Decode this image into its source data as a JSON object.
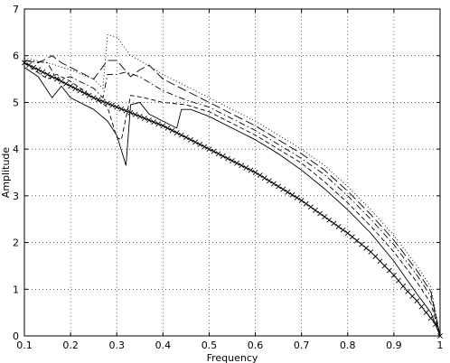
{
  "chart_data": {
    "type": "line",
    "title": "",
    "xlabel": "Frequency",
    "ylabel": "Amplitude",
    "xlim": [
      0.1,
      1
    ],
    "ylim": [
      0,
      7
    ],
    "xticks": [
      "0.1",
      "0.2",
      "0.3",
      "0.4",
      "0.5",
      "0.6",
      "0.7",
      "0.8",
      "0.9",
      "1"
    ],
    "yticks": [
      "0",
      "1",
      "2",
      "3",
      "4",
      "5",
      "6",
      "7"
    ],
    "grid": true,
    "series": [
      {
        "style": "solid",
        "marker": "none",
        "x": [
          0.1,
          0.13,
          0.16,
          0.18,
          0.2,
          0.25,
          0.28,
          0.3,
          0.32,
          0.33,
          0.35,
          0.37,
          0.4,
          0.43,
          0.44,
          0.46,
          0.5,
          0.55,
          0.6,
          0.65,
          0.7,
          0.75,
          0.8,
          0.85,
          0.9,
          0.95,
          0.98,
          1.0
        ],
        "y": [
          5.75,
          5.55,
          5.1,
          5.35,
          5.1,
          4.85,
          4.6,
          4.3,
          3.65,
          4.95,
          5.0,
          4.75,
          4.6,
          4.45,
          4.85,
          4.85,
          4.7,
          4.45,
          4.2,
          3.9,
          3.55,
          3.15,
          2.7,
          2.2,
          1.6,
          0.9,
          0.5,
          0.0
        ]
      },
      {
        "style": "dashed",
        "marker": "none",
        "x": [
          0.1,
          0.15,
          0.17,
          0.2,
          0.25,
          0.28,
          0.3,
          0.31,
          0.33,
          0.36,
          0.4,
          0.45,
          0.5,
          0.55,
          0.6,
          0.65,
          0.7,
          0.75,
          0.8,
          0.85,
          0.9,
          0.95,
          0.98,
          1.0
        ],
        "y": [
          5.85,
          5.5,
          5.6,
          5.45,
          5.1,
          4.9,
          4.25,
          4.2,
          5.15,
          5.1,
          5.0,
          4.95,
          4.8,
          4.55,
          4.3,
          4.0,
          3.7,
          3.3,
          2.85,
          2.35,
          1.8,
          1.15,
          0.7,
          0.0
        ]
      },
      {
        "style": "dashdot",
        "marker": "none",
        "x": [
          0.1,
          0.15,
          0.17,
          0.2,
          0.25,
          0.27,
          0.28,
          0.3,
          0.32,
          0.35,
          0.4,
          0.45,
          0.5,
          0.55,
          0.6,
          0.65,
          0.7,
          0.75,
          0.8,
          0.85,
          0.9,
          0.95,
          0.98,
          1.0
        ],
        "y": [
          5.9,
          5.85,
          5.5,
          5.55,
          5.3,
          5.1,
          5.6,
          5.6,
          5.65,
          5.55,
          5.25,
          5.05,
          4.9,
          4.65,
          4.4,
          4.1,
          3.8,
          3.45,
          3.0,
          2.5,
          1.95,
          1.3,
          0.85,
          0.0
        ]
      },
      {
        "style": "longdash",
        "marker": "none",
        "x": [
          0.1,
          0.13,
          0.16,
          0.18,
          0.2,
          0.25,
          0.28,
          0.3,
          0.33,
          0.35,
          0.37,
          0.4,
          0.45,
          0.5,
          0.55,
          0.6,
          0.65,
          0.7,
          0.75,
          0.8,
          0.85,
          0.9,
          0.95,
          0.98,
          1.0
        ],
        "y": [
          5.9,
          5.85,
          6.0,
          5.85,
          5.75,
          5.5,
          5.9,
          5.9,
          5.55,
          5.7,
          5.8,
          5.5,
          5.25,
          5.0,
          4.75,
          4.5,
          4.2,
          3.9,
          3.55,
          3.1,
          2.6,
          2.05,
          1.4,
          0.95,
          0.0
        ]
      },
      {
        "style": "dotted",
        "marker": "none",
        "x": [
          0.1,
          0.15,
          0.2,
          0.25,
          0.27,
          0.28,
          0.3,
          0.33,
          0.35,
          0.4,
          0.45,
          0.5,
          0.55,
          0.6,
          0.65,
          0.7,
          0.75,
          0.8,
          0.85,
          0.9,
          0.95,
          0.98,
          1.0
        ],
        "y": [
          5.95,
          5.85,
          5.7,
          5.5,
          5.3,
          6.45,
          6.4,
          6.0,
          5.9,
          5.6,
          5.35,
          5.1,
          4.85,
          4.6,
          4.3,
          4.0,
          3.65,
          3.2,
          2.7,
          2.15,
          1.5,
          1.05,
          0.0
        ]
      },
      {
        "style": "solid",
        "marker": "x",
        "x": [
          0.1,
          0.15,
          0.2,
          0.25,
          0.3,
          0.35,
          0.4,
          0.45,
          0.5,
          0.55,
          0.6,
          0.65,
          0.7,
          0.75,
          0.8,
          0.85,
          0.9,
          0.93,
          0.95,
          0.97,
          0.98,
          0.99,
          1.0
        ],
        "y": [
          5.85,
          5.6,
          5.35,
          5.1,
          4.9,
          4.7,
          4.5,
          4.25,
          4.0,
          3.75,
          3.5,
          3.2,
          2.9,
          2.55,
          2.2,
          1.8,
          1.3,
          0.95,
          0.75,
          0.5,
          0.38,
          0.25,
          0.0
        ]
      }
    ]
  }
}
